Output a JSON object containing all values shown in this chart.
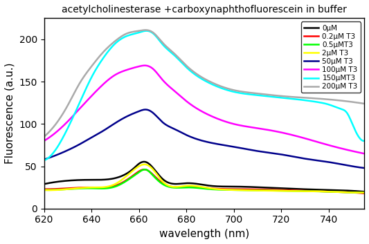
{
  "title": "acetylcholinesterase +carboxynaphthofluorescein in buffer",
  "xlabel": "wavelength (nm)",
  "ylabel": "Fluorescence (a.u.)",
  "xlim": [
    620,
    755
  ],
  "ylim": [
    0,
    225
  ],
  "yticks": [
    0,
    50,
    100,
    150,
    200
  ],
  "xticks": [
    620,
    640,
    660,
    680,
    700,
    720,
    740
  ],
  "series": [
    {
      "label": "0μM",
      "color": "#000000",
      "lw": 1.8,
      "points": [
        [
          620,
          29
        ],
        [
          630,
          33
        ],
        [
          640,
          34
        ],
        [
          650,
          36
        ],
        [
          658,
          48
        ],
        [
          660,
          53
        ],
        [
          663,
          55
        ],
        [
          666,
          48
        ],
        [
          670,
          35
        ],
        [
          680,
          30
        ],
        [
          690,
          27
        ],
        [
          700,
          26
        ],
        [
          720,
          24
        ],
        [
          740,
          22
        ],
        [
          750,
          21
        ],
        [
          755,
          20
        ]
      ]
    },
    {
      "label": "0.2μM T3",
      "color": "#ff0000",
      "lw": 1.8,
      "points": [
        [
          620,
          23
        ],
        [
          630,
          24
        ],
        [
          640,
          25
        ],
        [
          650,
          27
        ],
        [
          658,
          40
        ],
        [
          660,
          44
        ],
        [
          663,
          46
        ],
        [
          666,
          40
        ],
        [
          670,
          30
        ],
        [
          680,
          26
        ],
        [
          690,
          24
        ],
        [
          700,
          23
        ],
        [
          720,
          22
        ],
        [
          740,
          20
        ],
        [
          750,
          19
        ],
        [
          755,
          18
        ]
      ]
    },
    {
      "label": "0.5μMT3",
      "color": "#00ff00",
      "lw": 1.8,
      "points": [
        [
          620,
          22
        ],
        [
          630,
          23
        ],
        [
          640,
          24
        ],
        [
          650,
          26
        ],
        [
          658,
          39
        ],
        [
          660,
          43
        ],
        [
          663,
          46
        ],
        [
          666,
          39
        ],
        [
          670,
          29
        ],
        [
          680,
          25
        ],
        [
          690,
          23
        ],
        [
          700,
          22
        ],
        [
          720,
          21
        ],
        [
          740,
          20
        ],
        [
          750,
          19
        ],
        [
          755,
          19
        ]
      ]
    },
    {
      "label": "2μM T3",
      "color": "#ffff00",
      "lw": 1.8,
      "points": [
        [
          620,
          22
        ],
        [
          630,
          23
        ],
        [
          640,
          25
        ],
        [
          650,
          29
        ],
        [
          658,
          46
        ],
        [
          660,
          50
        ],
        [
          663,
          52
        ],
        [
          666,
          46
        ],
        [
          670,
          32
        ],
        [
          680,
          27
        ],
        [
          690,
          24
        ],
        [
          700,
          22
        ],
        [
          720,
          21
        ],
        [
          740,
          20
        ],
        [
          750,
          19
        ],
        [
          755,
          19
        ]
      ]
    },
    {
      "label": "50μM T3",
      "color": "#00008b",
      "lw": 1.8,
      "points": [
        [
          620,
          58
        ],
        [
          625,
          63
        ],
        [
          630,
          69
        ],
        [
          635,
          76
        ],
        [
          640,
          84
        ],
        [
          645,
          92
        ],
        [
          650,
          101
        ],
        [
          655,
          109
        ],
        [
          660,
          115
        ],
        [
          663,
          117
        ],
        [
          666,
          113
        ],
        [
          670,
          102
        ],
        [
          675,
          94
        ],
        [
          680,
          87
        ],
        [
          690,
          78
        ],
        [
          700,
          73
        ],
        [
          710,
          68
        ],
        [
          720,
          64
        ],
        [
          730,
          59
        ],
        [
          740,
          55
        ],
        [
          750,
          50
        ],
        [
          755,
          48
        ]
      ]
    },
    {
      "label": "100μM T3",
      "color": "#ff00ff",
      "lw": 1.8,
      "points": [
        [
          620,
          80
        ],
        [
          625,
          90
        ],
        [
          630,
          103
        ],
        [
          635,
          118
        ],
        [
          640,
          133
        ],
        [
          645,
          147
        ],
        [
          650,
          158
        ],
        [
          655,
          164
        ],
        [
          660,
          168
        ],
        [
          663,
          169
        ],
        [
          666,
          165
        ],
        [
          670,
          152
        ],
        [
          675,
          139
        ],
        [
          680,
          127
        ],
        [
          690,
          110
        ],
        [
          700,
          100
        ],
        [
          710,
          95
        ],
        [
          720,
          90
        ],
        [
          730,
          83
        ],
        [
          740,
          75
        ],
        [
          750,
          68
        ],
        [
          755,
          65
        ]
      ]
    },
    {
      "label": "150μMT3",
      "color": "#00ffff",
      "lw": 1.8,
      "points": [
        [
          620,
          57
        ],
        [
          625,
          70
        ],
        [
          630,
          95
        ],
        [
          635,
          125
        ],
        [
          640,
          155
        ],
        [
          645,
          178
        ],
        [
          650,
          195
        ],
        [
          655,
          204
        ],
        [
          660,
          208
        ],
        [
          663,
          210
        ],
        [
          666,
          207
        ],
        [
          670,
          194
        ],
        [
          675,
          181
        ],
        [
          680,
          167
        ],
        [
          690,
          148
        ],
        [
          700,
          138
        ],
        [
          710,
          134
        ],
        [
          720,
          131
        ],
        [
          730,
          128
        ],
        [
          735,
          126
        ],
        [
          740,
          123
        ],
        [
          745,
          118
        ],
        [
          748,
          112
        ],
        [
          750,
          100
        ],
        [
          752,
          88
        ],
        [
          755,
          80
        ]
      ]
    },
    {
      "label": "200μM T3",
      "color": "#aaaaaa",
      "lw": 1.8,
      "points": [
        [
          620,
          85
        ],
        [
          625,
          100
        ],
        [
          630,
          122
        ],
        [
          635,
          148
        ],
        [
          640,
          168
        ],
        [
          645,
          185
        ],
        [
          650,
          198
        ],
        [
          655,
          207
        ],
        [
          660,
          210
        ],
        [
          663,
          211
        ],
        [
          666,
          208
        ],
        [
          670,
          196
        ],
        [
          675,
          183
        ],
        [
          680,
          169
        ],
        [
          690,
          150
        ],
        [
          700,
          140
        ],
        [
          710,
          136
        ],
        [
          720,
          133
        ],
        [
          730,
          131
        ],
        [
          740,
          129
        ],
        [
          750,
          126
        ],
        [
          755,
          124
        ]
      ]
    }
  ],
  "legend_loc": "upper right",
  "background_color": "#ffffff",
  "title_fontsize": 10,
  "axis_fontsize": 11,
  "tick_fontsize": 10
}
